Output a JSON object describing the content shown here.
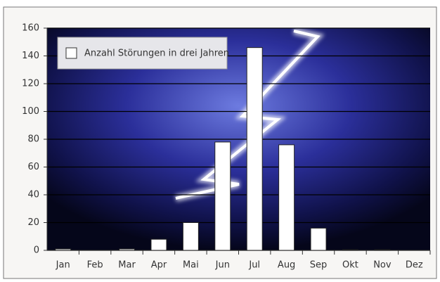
{
  "chart_data": {
    "type": "bar",
    "categories": [
      "Jan",
      "Feb",
      "Mar",
      "Apr",
      "Mai",
      "Jun",
      "Jul",
      "Aug",
      "Sep",
      "Okt",
      "Nov",
      "Dez"
    ],
    "series": [
      {
        "name": "Anzahl Störungen in drei Jahren",
        "color": "#ffffff",
        "values": [
          1,
          0,
          1,
          8,
          20,
          78,
          146,
          76,
          16,
          0.5,
          0.5,
          0
        ]
      }
    ],
    "ylim": [
      0,
      160
    ],
    "yticks": [
      0,
      20,
      40,
      60,
      80,
      100,
      120,
      140,
      160
    ],
    "grid": true,
    "legend": "upper left"
  }
}
